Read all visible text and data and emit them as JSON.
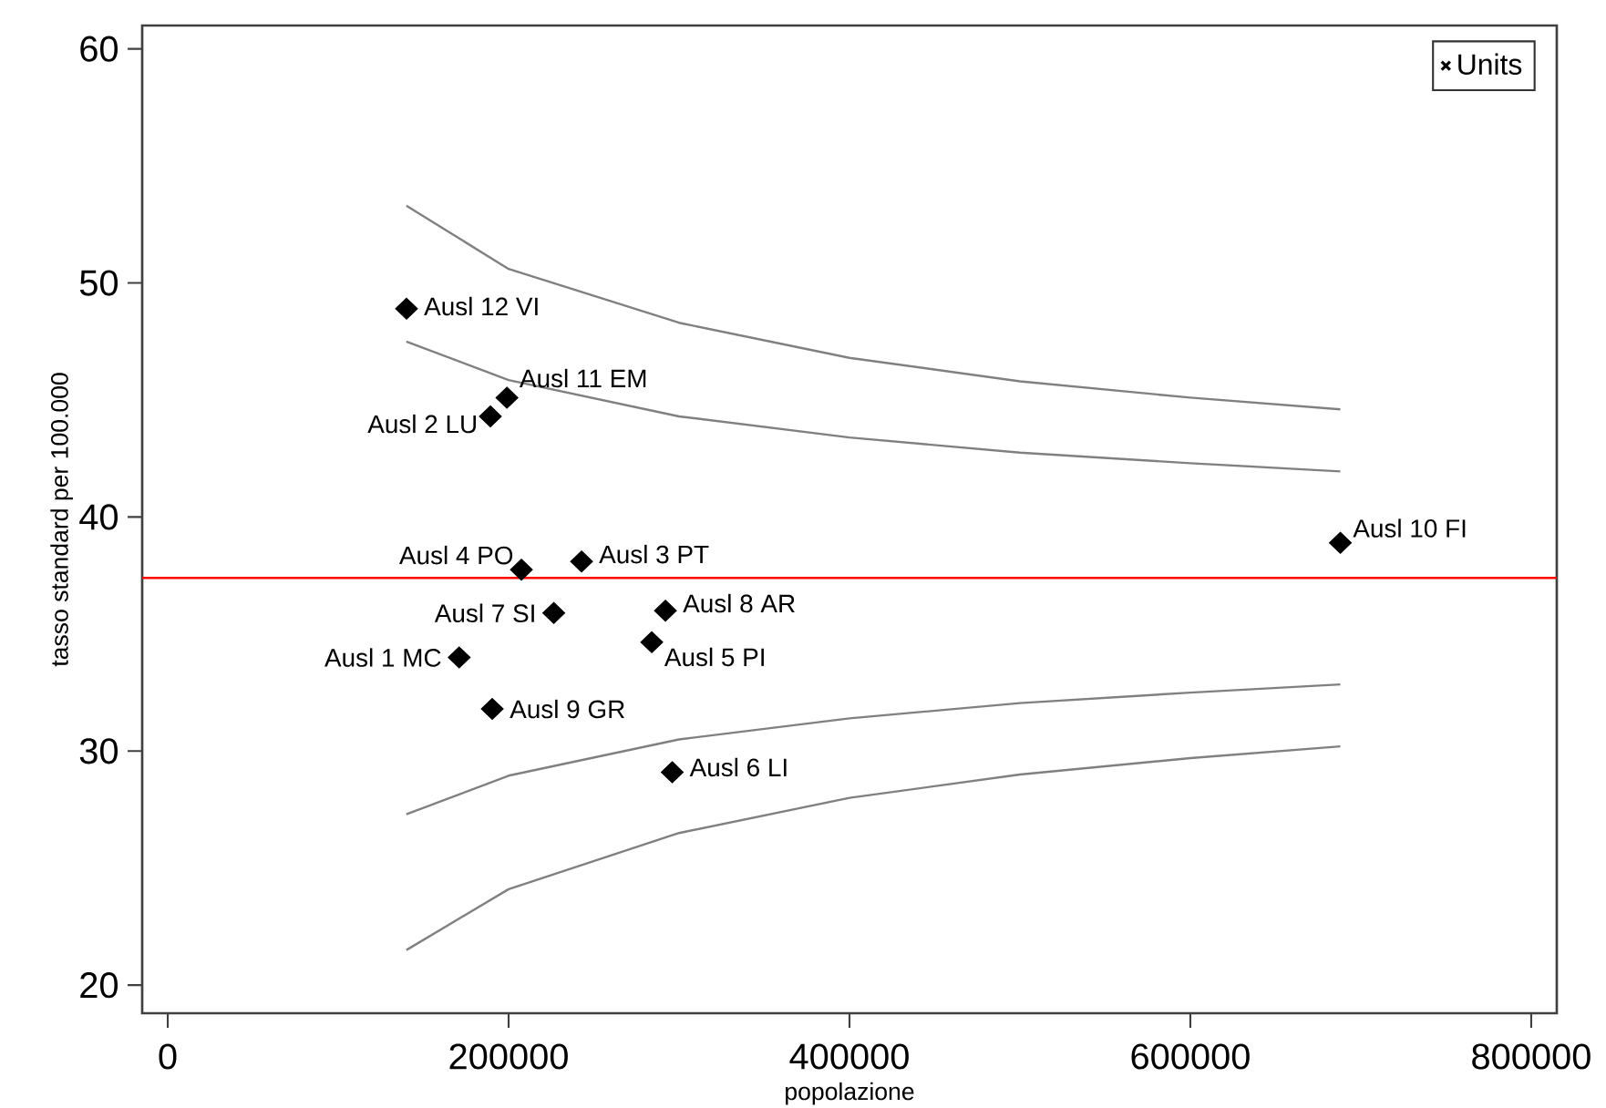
{
  "chart_data": {
    "type": "scatter",
    "xlabel": "popolazione",
    "ylabel": "tasso standard per 100.000",
    "xlim": [
      -15000,
      815000
    ],
    "ylim": [
      18.8,
      61
    ],
    "xticks": [
      0,
      200000,
      400000,
      600000,
      800000
    ],
    "yticks": [
      20,
      30,
      40,
      50,
      60
    ],
    "grid": false,
    "legend": "top right",
    "series": [
      {
        "name": "Units",
        "marker": "diamond",
        "color": "#000000",
        "x": [
          171000,
          189300,
          242800,
          207500,
          284000,
          296000,
          226500,
          292000,
          190400,
          688000,
          199000,
          140100
        ],
        "values": [
          34.0,
          44.3,
          38.1,
          37.75,
          34.65,
          29.1,
          35.9,
          36.0,
          31.8,
          38.9,
          45.1,
          48.9
        ]
      },
      {
        "type": "line",
        "marker": "none",
        "color": "#808080",
        "x": [
          140000,
          200000,
          300000,
          400000,
          500000,
          600000,
          688000
        ],
        "values": [
          53.3,
          50.6,
          48.3,
          46.8,
          45.8,
          45.1,
          44.6
        ]
      },
      {
        "type": "line",
        "marker": "none",
        "color": "#808080",
        "x": [
          140000,
          200000,
          300000,
          400000,
          500000,
          600000,
          688000
        ],
        "values": [
          47.5,
          45.85,
          44.3,
          43.4,
          42.75,
          42.3,
          41.95
        ]
      },
      {
        "type": "line",
        "marker": "none",
        "color": "#808080",
        "x": [
          140000,
          200000,
          300000,
          400000,
          500000,
          600000,
          688000
        ],
        "values": [
          27.3,
          28.95,
          30.5,
          31.4,
          32.05,
          32.5,
          32.85
        ]
      },
      {
        "type": "line",
        "marker": "none",
        "color": "#808080",
        "x": [
          140000,
          200000,
          300000,
          400000,
          500000,
          600000,
          688000
        ],
        "values": [
          21.5,
          24.1,
          26.5,
          28.0,
          29.0,
          29.7,
          30.2
        ]
      }
    ],
    "ref_lines": [
      {
        "axis": "y",
        "value": 37.4,
        "color": "#ff0000"
      }
    ],
    "annotations": [
      {
        "text": "Ausl 1 MC",
        "x": 171000,
        "y": 34.0
      },
      {
        "text": "Ausl 2 LU",
        "x": 189300,
        "y": 44.3
      },
      {
        "text": "Ausl 3 PT",
        "x": 242800,
        "y": 38.1
      },
      {
        "text": "Ausl 4 PO",
        "x": 207500,
        "y": 37.75
      },
      {
        "text": "Ausl 5 PI",
        "x": 284000,
        "y": 34.65
      },
      {
        "text": "Ausl 6 LI",
        "x": 296000,
        "y": 29.1
      },
      {
        "text": "Ausl 7 SI",
        "x": 226500,
        "y": 35.9
      },
      {
        "text": "Ausl 8 AR",
        "x": 292000,
        "y": 36.0
      },
      {
        "text": "Ausl 9 GR",
        "x": 190400,
        "y": 31.8
      },
      {
        "text": "Ausl 10 FI",
        "x": 688000,
        "y": 38.9
      },
      {
        "text": "Ausl 11 EM",
        "x": 199000,
        "y": 45.1
      },
      {
        "text": "Ausl 12 VI",
        "x": 140100,
        "y": 48.9
      }
    ]
  }
}
